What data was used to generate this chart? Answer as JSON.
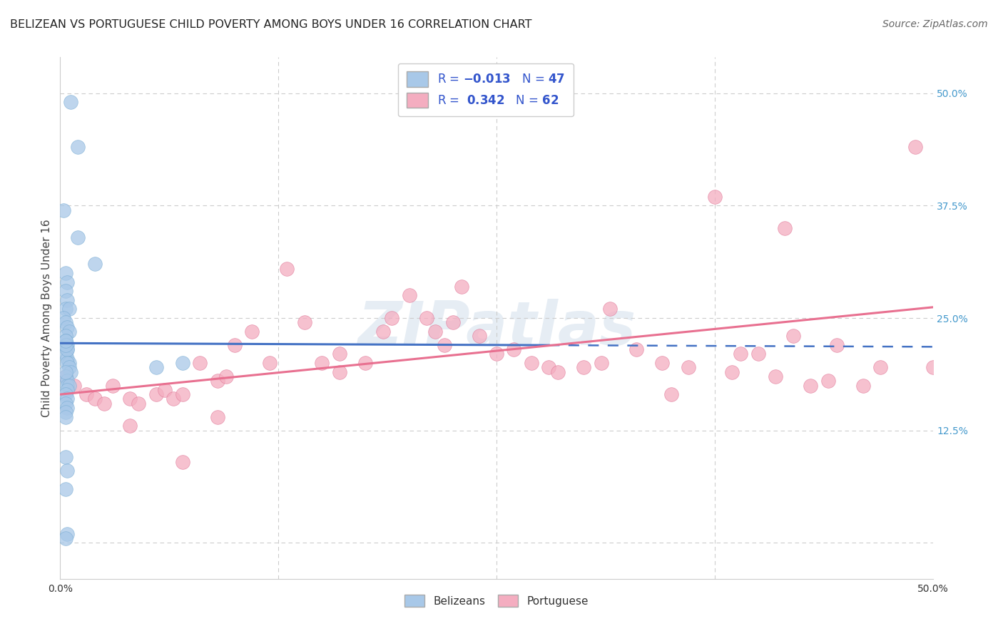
{
  "title": "BELIZEAN VS PORTUGUESE CHILD POVERTY AMONG BOYS UNDER 16 CORRELATION CHART",
  "source": "Source: ZipAtlas.com",
  "ylabel": "Child Poverty Among Boys Under 16",
  "xlim": [
    0,
    0.5
  ],
  "ylim": [
    -0.04,
    0.54
  ],
  "belizean_color": "#a8c8e8",
  "belizean_edge": "#7aadd4",
  "portuguese_color": "#f4adc0",
  "portuguese_edge": "#e07898",
  "belizean_R": -0.013,
  "belizean_N": 47,
  "portuguese_R": 0.342,
  "portuguese_N": 62,
  "bel_line_solid_end": 0.28,
  "bel_line_start_y": 0.222,
  "bel_line_end_y": 0.218,
  "prt_line_start_y": 0.165,
  "prt_line_end_y": 0.262,
  "watermark": "ZIPatlas",
  "background_color": "#ffffff",
  "bel_line_color": "#4472c4",
  "prt_line_color": "#e87090",
  "grid_color": "#cccccc",
  "right_tick_color": "#4499cc",
  "belizean_x": [
    0.006,
    0.01,
    0.002,
    0.01,
    0.02,
    0.003,
    0.004,
    0.003,
    0.004,
    0.003,
    0.005,
    0.002,
    0.003,
    0.004,
    0.005,
    0.003,
    0.003,
    0.004,
    0.004,
    0.003,
    0.004,
    0.005,
    0.004,
    0.003,
    0.003,
    0.004,
    0.005,
    0.006,
    0.003,
    0.004,
    0.004,
    0.003,
    0.07,
    0.055,
    0.005,
    0.004,
    0.003,
    0.004,
    0.003,
    0.004,
    0.003,
    0.003,
    0.003,
    0.004,
    0.003,
    0.004,
    0.003
  ],
  "belizean_y": [
    0.49,
    0.44,
    0.37,
    0.34,
    0.31,
    0.3,
    0.29,
    0.28,
    0.27,
    0.26,
    0.26,
    0.25,
    0.245,
    0.24,
    0.235,
    0.23,
    0.225,
    0.22,
    0.215,
    0.21,
    0.205,
    0.2,
    0.215,
    0.22,
    0.225,
    0.2,
    0.195,
    0.19,
    0.185,
    0.18,
    0.175,
    0.19,
    0.2,
    0.195,
    0.175,
    0.17,
    0.165,
    0.16,
    0.155,
    0.15,
    0.145,
    0.14,
    0.095,
    0.08,
    0.06,
    0.01,
    0.005
  ],
  "portuguese_x": [
    0.003,
    0.008,
    0.015,
    0.02,
    0.025,
    0.03,
    0.04,
    0.045,
    0.055,
    0.06,
    0.065,
    0.07,
    0.08,
    0.09,
    0.095,
    0.1,
    0.11,
    0.12,
    0.13,
    0.14,
    0.15,
    0.16,
    0.175,
    0.185,
    0.2,
    0.21,
    0.215,
    0.22,
    0.225,
    0.23,
    0.24,
    0.25,
    0.26,
    0.27,
    0.28,
    0.285,
    0.3,
    0.315,
    0.33,
    0.345,
    0.36,
    0.375,
    0.385,
    0.4,
    0.415,
    0.42,
    0.44,
    0.445,
    0.46,
    0.47,
    0.49,
    0.5,
    0.39,
    0.43,
    0.31,
    0.35,
    0.41,
    0.16,
    0.09,
    0.04,
    0.07,
    0.19
  ],
  "portuguese_y": [
    0.185,
    0.175,
    0.165,
    0.16,
    0.155,
    0.175,
    0.16,
    0.155,
    0.165,
    0.17,
    0.16,
    0.165,
    0.2,
    0.18,
    0.185,
    0.22,
    0.235,
    0.2,
    0.305,
    0.245,
    0.2,
    0.19,
    0.2,
    0.235,
    0.275,
    0.25,
    0.235,
    0.22,
    0.245,
    0.285,
    0.23,
    0.21,
    0.215,
    0.2,
    0.195,
    0.19,
    0.195,
    0.26,
    0.215,
    0.2,
    0.195,
    0.385,
    0.19,
    0.21,
    0.35,
    0.23,
    0.18,
    0.22,
    0.175,
    0.195,
    0.44,
    0.195,
    0.21,
    0.175,
    0.2,
    0.165,
    0.185,
    0.21,
    0.14,
    0.13,
    0.09,
    0.25
  ]
}
